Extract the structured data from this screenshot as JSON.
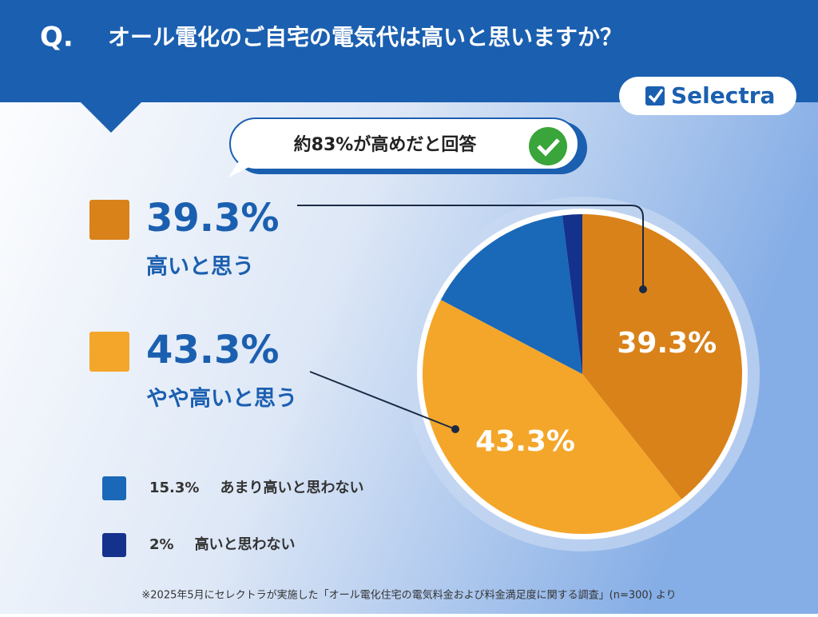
{
  "chart_data": {
    "type": "pie",
    "question_mark": "Q.",
    "title": "オール電化のご自宅の電気代は高いと思いますか？",
    "brand": "Selectra",
    "callout": "約83%が高めだと回答",
    "categories": [
      "高いと思う",
      "やや高いと思う",
      "あまり高いと思わない",
      "高いと思わない"
    ],
    "values": [
      39.3,
      43.3,
      15.3,
      2
    ],
    "value_labels": [
      "39.3%",
      "43.3%",
      "15.3%",
      "2%"
    ],
    "colors": [
      "#d9821a",
      "#f4a62a",
      "#1a68b8",
      "#14318c"
    ],
    "footnote": "※2025年5月にセレクトラが実施した「オール電化住宅の電気料金および料金満足度に関する調査」(n=300) より"
  }
}
